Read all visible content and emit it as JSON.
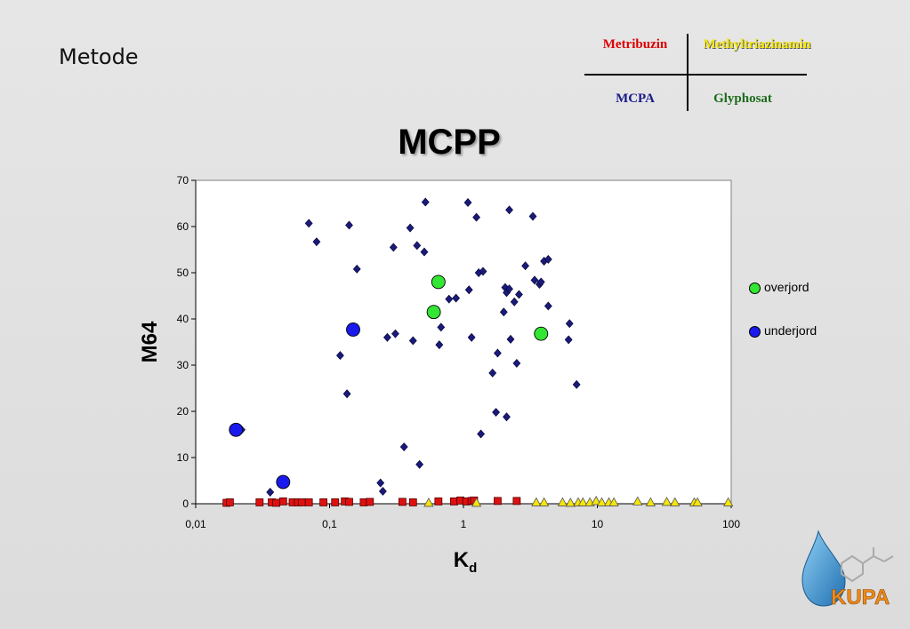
{
  "slide": {
    "heading": "Metode"
  },
  "key_table": {
    "top_left": {
      "label": "Metribuzin",
      "color": "#dd0000"
    },
    "top_right": {
      "label": "Methyltriazinamin",
      "color": "#f5e60a"
    },
    "bottom_left": {
      "label": "MCPA",
      "color": "#1a1a8c"
    },
    "bottom_right": {
      "label": "Glyphosat",
      "color": "#1d6b1d"
    }
  },
  "logo": {
    "text": "KUPA"
  },
  "chart_data": {
    "type": "scatter",
    "title": "MCPP",
    "xlabel": "K",
    "xlabel_subscript": "d",
    "ylabel": "M64",
    "x_scale": "log",
    "xlim": [
      0.01,
      100
    ],
    "ylim": [
      0,
      70
    ],
    "x_ticks": [
      "0,01",
      "0,1",
      "1",
      "10",
      "100"
    ],
    "y_ticks": [
      "0",
      "10",
      "20",
      "30",
      "40",
      "50",
      "60",
      "70"
    ],
    "grid": false,
    "legend_position": "right",
    "legend": [
      {
        "label": "overjord",
        "color": "#33e633"
      },
      {
        "label": "underjord",
        "color": "#1a1aee"
      }
    ],
    "series": [
      {
        "name": "overjord",
        "marker": "circle",
        "color": "#33e633",
        "points": [
          [
            0.65,
            48
          ],
          [
            0.6,
            41.5
          ],
          [
            3.8,
            36.8
          ]
        ]
      },
      {
        "name": "underjord",
        "marker": "circle",
        "color": "#1a1aee",
        "points": [
          [
            0.15,
            37.7
          ],
          [
            0.02,
            16
          ],
          [
            0.045,
            4.7
          ]
        ]
      },
      {
        "marker": "diamond",
        "color": "#1a1a7a",
        "points": [
          [
            0.022,
            16
          ],
          [
            0.07,
            60.7
          ],
          [
            0.08,
            56.7
          ],
          [
            0.14,
            60.3
          ],
          [
            0.16,
            50.8
          ],
          [
            0.12,
            32.1
          ],
          [
            0.135,
            23.8
          ],
          [
            0.036,
            2.5
          ],
          [
            0.24,
            4.5
          ],
          [
            0.25,
            2.7
          ],
          [
            0.27,
            36
          ],
          [
            0.3,
            55.5
          ],
          [
            0.31,
            36.8
          ],
          [
            0.4,
            59.7
          ],
          [
            0.42,
            35.3
          ],
          [
            0.45,
            55.9
          ],
          [
            0.51,
            54.5
          ],
          [
            0.52,
            65.3
          ],
          [
            0.36,
            12.3
          ],
          [
            0.47,
            8.5
          ],
          [
            0.68,
            38.2
          ],
          [
            0.66,
            34.4
          ],
          [
            0.78,
            44.3
          ],
          [
            0.88,
            44.5
          ],
          [
            1.08,
            65.2
          ],
          [
            1.1,
            46.3
          ],
          [
            1.15,
            36
          ],
          [
            1.25,
            62
          ],
          [
            1.3,
            50
          ],
          [
            1.4,
            50.3
          ],
          [
            1.35,
            15.1
          ],
          [
            1.65,
            28.3
          ],
          [
            1.75,
            19.8
          ],
          [
            1.8,
            32.6
          ],
          [
            2.0,
            41.5
          ],
          [
            2.05,
            46.8
          ],
          [
            2.1,
            45.7
          ],
          [
            2.2,
            46.5
          ],
          [
            2.25,
            35.6
          ],
          [
            2.2,
            63.6
          ],
          [
            2.4,
            43.7
          ],
          [
            2.5,
            30.4
          ],
          [
            2.6,
            45.3
          ],
          [
            2.1,
            18.8
          ],
          [
            2.9,
            51.5
          ],
          [
            3.3,
            62.2
          ],
          [
            3.4,
            48.4
          ],
          [
            3.7,
            47.5
          ],
          [
            3.8,
            48
          ],
          [
            4.0,
            52.5
          ],
          [
            4.3,
            52.9
          ],
          [
            4.3,
            42.8
          ],
          [
            6.2,
            39
          ],
          [
            6.1,
            35.5
          ],
          [
            7.0,
            25.8
          ]
        ]
      },
      {
        "marker": "square",
        "color": "#dd1111",
        "points": [
          [
            0.017,
            0.2
          ],
          [
            0.018,
            0.3
          ],
          [
            0.03,
            0.3
          ],
          [
            0.037,
            0.3
          ],
          [
            0.04,
            0.2
          ],
          [
            0.045,
            0.5
          ],
          [
            0.053,
            0.3
          ],
          [
            0.058,
            0.3
          ],
          [
            0.062,
            0.3
          ],
          [
            0.07,
            0.3
          ],
          [
            0.09,
            0.3
          ],
          [
            0.11,
            0.3
          ],
          [
            0.13,
            0.5
          ],
          [
            0.14,
            0.4
          ],
          [
            0.18,
            0.3
          ],
          [
            0.2,
            0.4
          ],
          [
            0.35,
            0.4
          ],
          [
            0.42,
            0.3
          ],
          [
            0.65,
            0.5
          ],
          [
            0.85,
            0.5
          ],
          [
            0.95,
            0.7
          ],
          [
            1.05,
            0.5
          ],
          [
            1.15,
            0.6
          ],
          [
            1.2,
            0.7
          ],
          [
            1.8,
            0.6
          ],
          [
            2.5,
            0.6
          ]
        ]
      },
      {
        "marker": "triangle",
        "color": "#f5e60a",
        "points": [
          [
            0.55,
            0.2
          ],
          [
            1.25,
            0.2
          ],
          [
            3.5,
            0.3
          ],
          [
            4.0,
            0.3
          ],
          [
            5.5,
            0.3
          ],
          [
            6.3,
            0.2
          ],
          [
            7.2,
            0.3
          ],
          [
            7.8,
            0.3
          ],
          [
            8.8,
            0.3
          ],
          [
            9.8,
            0.6
          ],
          [
            10.8,
            0.3
          ],
          [
            12.2,
            0.3
          ],
          [
            13.3,
            0.3
          ],
          [
            20,
            0.5
          ],
          [
            25,
            0.3
          ],
          [
            33,
            0.4
          ],
          [
            38,
            0.3
          ],
          [
            53,
            0.3
          ],
          [
            56,
            0.3
          ],
          [
            95,
            0.3
          ]
        ]
      }
    ]
  }
}
